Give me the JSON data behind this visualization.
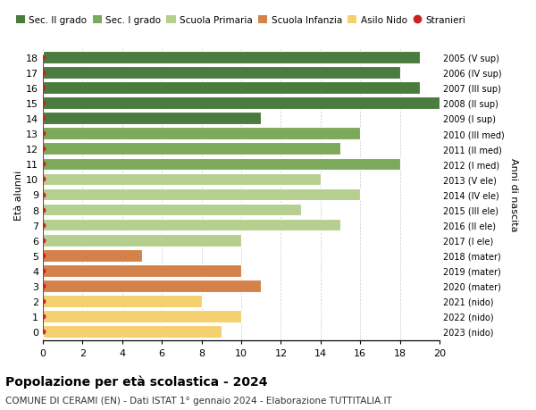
{
  "ages": [
    18,
    17,
    16,
    15,
    14,
    13,
    12,
    11,
    10,
    9,
    8,
    7,
    6,
    5,
    4,
    3,
    2,
    1,
    0
  ],
  "years": [
    "2005 (V sup)",
    "2006 (IV sup)",
    "2007 (III sup)",
    "2008 (II sup)",
    "2009 (I sup)",
    "2010 (III med)",
    "2011 (II med)",
    "2012 (I med)",
    "2013 (V ele)",
    "2014 (IV ele)",
    "2015 (III ele)",
    "2016 (II ele)",
    "2017 (I ele)",
    "2018 (mater)",
    "2019 (mater)",
    "2020 (mater)",
    "2021 (nido)",
    "2022 (nido)",
    "2023 (nido)"
  ],
  "values": [
    19,
    18,
    19,
    20,
    11,
    16,
    15,
    18,
    14,
    16,
    13,
    15,
    10,
    5,
    10,
    11,
    8,
    10,
    9
  ],
  "stranieri": [
    1,
    1,
    1,
    1,
    1,
    1,
    1,
    1,
    1,
    1,
    1,
    1,
    1,
    1,
    1,
    1,
    1,
    1,
    1
  ],
  "bar_colors": [
    "#4a7c3f",
    "#4a7c3f",
    "#4a7c3f",
    "#4a7c3f",
    "#4a7c3f",
    "#7daa5a",
    "#7daa5a",
    "#7daa5a",
    "#b5cf8f",
    "#b5cf8f",
    "#b5cf8f",
    "#b5cf8f",
    "#b5cf8f",
    "#d4824a",
    "#d4824a",
    "#d4824a",
    "#f5d06e",
    "#f5d06e",
    "#f5d06e"
  ],
  "legend_labels": [
    "Sec. II grado",
    "Sec. I grado",
    "Scuola Primaria",
    "Scuola Infanzia",
    "Asilo Nido",
    "Stranieri"
  ],
  "legend_colors": [
    "#4a7c3f",
    "#7daa5a",
    "#b5cf8f",
    "#d4824a",
    "#f5d06e",
    "#cc2222"
  ],
  "xlim": [
    0,
    20
  ],
  "xticks": [
    0,
    2,
    4,
    6,
    8,
    10,
    12,
    14,
    16,
    18,
    20
  ],
  "ylabel_left": "Età alunni",
  "ylabel_right": "Anni di nascita",
  "title": "Popolazione per età scolastica - 2024",
  "subtitle": "COMUNE DI CERAMI (EN) - Dati ISTAT 1° gennaio 2024 - Elaborazione TUTTITALIA.IT",
  "stranieri_color": "#cc2222",
  "stranieri_line_color": "#b03030",
  "bg_color": "#ffffff",
  "grid_color": "#cccccc",
  "bar_height": 0.82
}
